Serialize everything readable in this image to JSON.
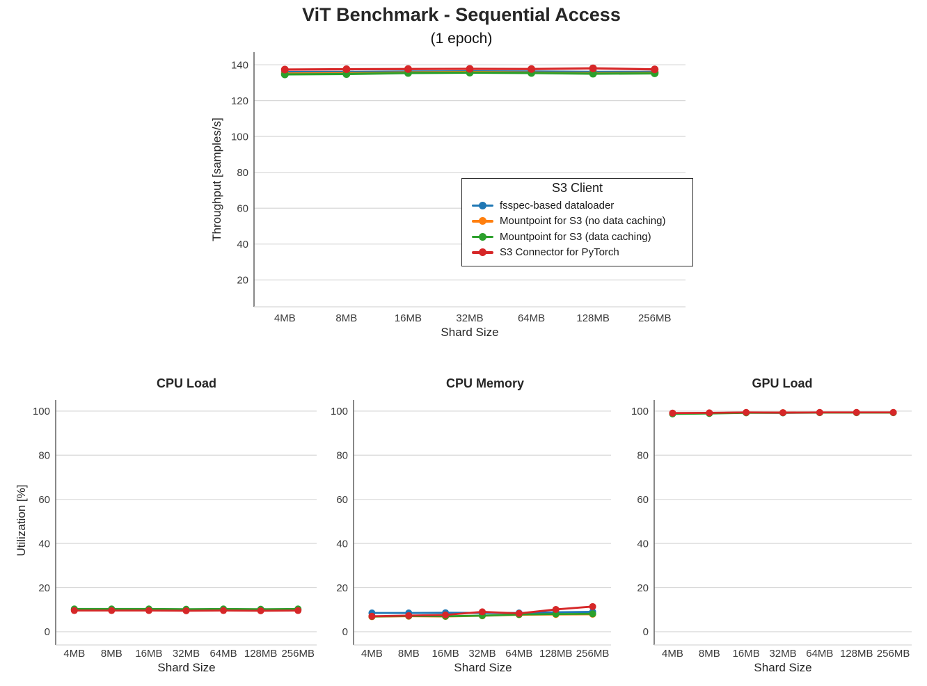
{
  "colors": {
    "blue": "#1f77b4",
    "orange": "#ff7f0e",
    "green": "#2ca02c",
    "red": "#d62728",
    "grid": "#d8d8d8",
    "spine": "#606060",
    "tick_text": "#3a3a3a",
    "title_text": "#262626"
  },
  "chart_data": [
    {
      "id": "throughput",
      "type": "line",
      "title": "ViT Benchmark - Sequential Access",
      "subtitle": "(1 epoch)",
      "xlabel": "Shard Size",
      "ylabel": "Throughput [samples/s]",
      "categories": [
        "4MB",
        "8MB",
        "16MB",
        "32MB",
        "64MB",
        "128MB",
        "256MB"
      ],
      "ylim": [
        5,
        147
      ],
      "yticks": [
        20,
        40,
        60,
        80,
        100,
        120,
        140
      ],
      "grid": true,
      "legend_title": "S3 Client",
      "legend_position": "inside middle-right, boxed",
      "series": [
        {
          "name": "fsspec-based dataloader",
          "color": "blue",
          "values": [
            135.9,
            136.0,
            136.2,
            136.3,
            136.2,
            136.0,
            136.0
          ]
        },
        {
          "name": "Mountpoint for S3 (no data caching)",
          "color": "orange",
          "values": [
            135.1,
            135.3,
            135.7,
            135.9,
            135.6,
            135.3,
            135.5
          ]
        },
        {
          "name": "Mountpoint for S3 (data caching)",
          "color": "green",
          "values": [
            134.6,
            134.8,
            135.4,
            135.6,
            135.4,
            135.0,
            135.2
          ]
        },
        {
          "name": "S3 Connector for PyTorch",
          "color": "red",
          "values": [
            137.3,
            137.5,
            137.6,
            137.7,
            137.6,
            138.0,
            137.4
          ]
        }
      ]
    },
    {
      "id": "cpu_load",
      "type": "line",
      "title": "CPU Load",
      "xlabel": "Shard Size",
      "ylabel": "Utilization [%]",
      "categories": [
        "4MB",
        "8MB",
        "16MB",
        "32MB",
        "64MB",
        "128MB",
        "256MB"
      ],
      "ylim": [
        -6,
        105
      ],
      "yticks": [
        0,
        20,
        40,
        60,
        80,
        100
      ],
      "grid": true,
      "series": [
        {
          "name": "fsspec-based dataloader",
          "color": "blue",
          "values": [
            9.9,
            9.9,
            9.9,
            9.9,
            9.9,
            9.9,
            9.9
          ]
        },
        {
          "name": "Mountpoint for S3 (no data caching)",
          "color": "orange",
          "values": [
            10.0,
            10.0,
            10.0,
            9.9,
            10.0,
            9.9,
            10.0
          ]
        },
        {
          "name": "Mountpoint for S3 (data caching)",
          "color": "green",
          "values": [
            10.3,
            10.3,
            10.3,
            10.2,
            10.3,
            10.2,
            10.3
          ]
        },
        {
          "name": "S3 Connector for PyTorch",
          "color": "red",
          "values": [
            9.6,
            9.6,
            9.6,
            9.5,
            9.6,
            9.5,
            9.6
          ]
        }
      ]
    },
    {
      "id": "cpu_memory",
      "type": "line",
      "title": "CPU Memory",
      "xlabel": "Shard Size",
      "ylabel": "",
      "categories": [
        "4MB",
        "8MB",
        "16MB",
        "32MB",
        "64MB",
        "128MB",
        "256MB"
      ],
      "ylim": [
        -6,
        105
      ],
      "yticks": [
        0,
        20,
        40,
        60,
        80,
        100
      ],
      "grid": true,
      "series": [
        {
          "name": "fsspec-based dataloader",
          "color": "blue",
          "values": [
            8.5,
            8.5,
            8.6,
            8.5,
            8.5,
            8.8,
            9.0
          ]
        },
        {
          "name": "Mountpoint for S3 (no data caching)",
          "color": "orange",
          "values": [
            6.8,
            7.0,
            6.9,
            7.2,
            7.7,
            7.8,
            7.9
          ]
        },
        {
          "name": "Mountpoint for S3 (data caching)",
          "color": "green",
          "values": [
            6.9,
            7.1,
            7.0,
            7.3,
            7.8,
            8.0,
            8.1
          ]
        },
        {
          "name": "S3 Connector for PyTorch",
          "color": "red",
          "values": [
            7.0,
            7.3,
            7.6,
            9.0,
            8.3,
            10.1,
            11.4
          ]
        }
      ]
    },
    {
      "id": "gpu_load",
      "type": "line",
      "title": "GPU Load",
      "xlabel": "Shard Size",
      "ylabel": "",
      "categories": [
        "4MB",
        "8MB",
        "16MB",
        "32MB",
        "64MB",
        "128MB",
        "256MB"
      ],
      "ylim": [
        -6,
        105
      ],
      "yticks": [
        0,
        20,
        40,
        60,
        80,
        100
      ],
      "grid": true,
      "series": [
        {
          "name": "fsspec-based dataloader",
          "color": "blue",
          "values": [
            99.0,
            99.1,
            99.3,
            99.2,
            99.3,
            99.3,
            99.3
          ]
        },
        {
          "name": "Mountpoint for S3 (no data caching)",
          "color": "orange",
          "values": [
            99.0,
            99.1,
            99.3,
            99.3,
            99.3,
            99.3,
            99.3
          ]
        },
        {
          "name": "Mountpoint for S3 (data caching)",
          "color": "green",
          "values": [
            98.7,
            98.9,
            99.2,
            99.2,
            99.3,
            99.3,
            99.3
          ]
        },
        {
          "name": "S3 Connector for PyTorch",
          "color": "red",
          "values": [
            99.1,
            99.2,
            99.4,
            99.3,
            99.4,
            99.4,
            99.4
          ]
        }
      ]
    }
  ]
}
